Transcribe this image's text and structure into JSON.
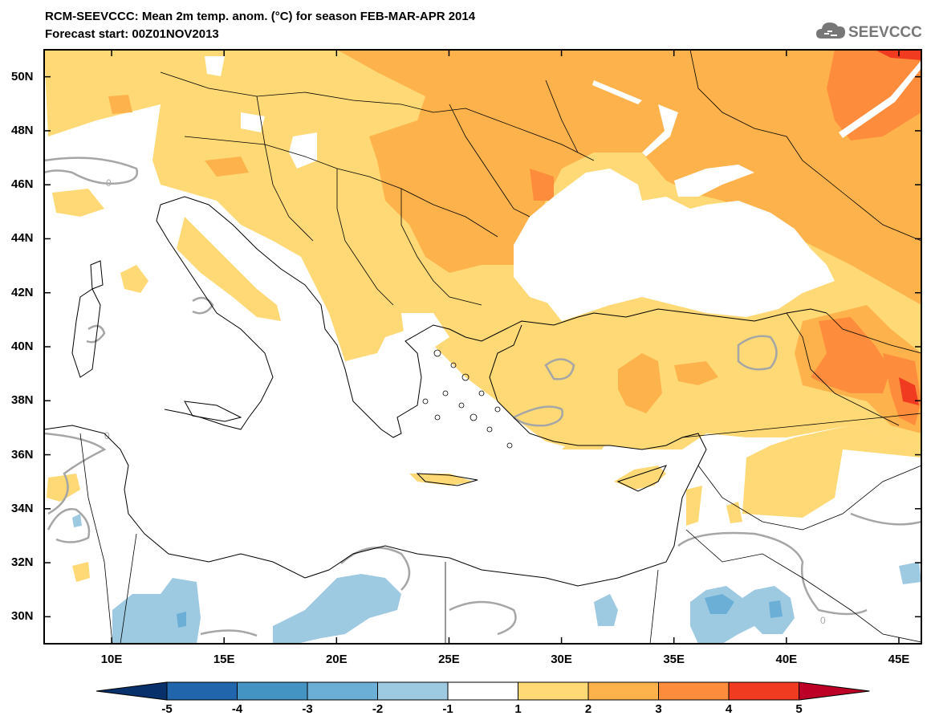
{
  "header": {
    "title": "RCM-SEEVCCC: Mean 2m temp. anom. (°C) for season FEB-MAR-APR 2014",
    "subtitle": "Forecast start: 00Z01NOV2013",
    "logo_text": "SEEVCCC",
    "logo_icon": "cloud-icon"
  },
  "map": {
    "lat_range": [
      29,
      51
    ],
    "lon_range": [
      7,
      46
    ],
    "lat_labels": [
      "50N",
      "48N",
      "46N",
      "44N",
      "42N",
      "40N",
      "38N",
      "36N",
      "34N",
      "32N",
      "30N"
    ],
    "lat_values": [
      50,
      48,
      46,
      44,
      42,
      40,
      38,
      36,
      34,
      32,
      30
    ],
    "lon_labels": [
      "10E",
      "15E",
      "20E",
      "25E",
      "30E",
      "35E",
      "40E",
      "45E"
    ],
    "lon_values": [
      10,
      15,
      20,
      25,
      30,
      35,
      40,
      45
    ],
    "contour_label": "0"
  },
  "colorbar": {
    "ticks": [
      "-5",
      "-4",
      "-3",
      "-2",
      "-1",
      "1",
      "2",
      "3",
      "4",
      "5"
    ],
    "colors": [
      "#08306b",
      "#2166ac",
      "#4393c3",
      "#6baed6",
      "#9ecae1",
      "#ffffff",
      "#fed976",
      "#feb24c",
      "#fd8d3c",
      "#f03b20",
      "#bd0026"
    ]
  }
}
